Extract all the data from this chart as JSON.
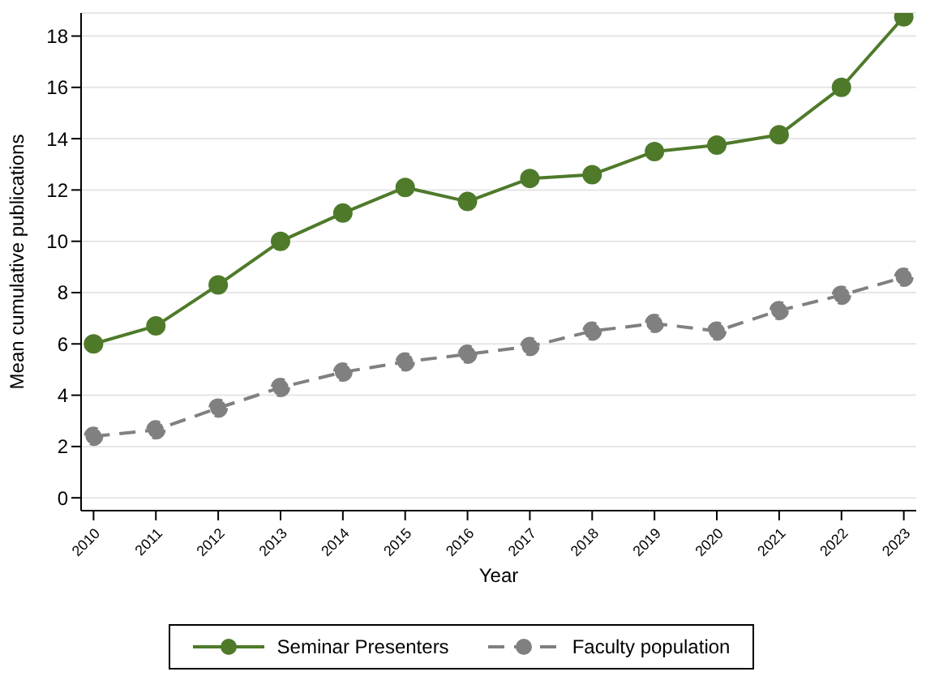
{
  "chart_data": {
    "type": "line",
    "xlabel": "Year",
    "ylabel": "Mean cumulative publications",
    "x": [
      2010,
      2011,
      2012,
      2013,
      2014,
      2015,
      2016,
      2017,
      2018,
      2019,
      2020,
      2021,
      2022,
      2023
    ],
    "xlim": [
      2009.8,
      2023.2
    ],
    "xticks": [
      2010,
      2011,
      2012,
      2013,
      2014,
      2015,
      2016,
      2017,
      2018,
      2019,
      2020,
      2021,
      2022,
      2023
    ],
    "ylim": [
      -0.5,
      18.9
    ],
    "yticks": [
      0,
      2,
      4,
      6,
      8,
      10,
      12,
      14,
      16,
      18
    ],
    "grid": "y",
    "legend": "bottom",
    "marker": "circle",
    "series": [
      {
        "name": "Seminar Presenters",
        "color": "#4e7a2a",
        "line_style": "solid",
        "values": [
          6.0,
          6.7,
          8.3,
          10.0,
          11.1,
          12.1,
          11.55,
          12.45,
          12.6,
          13.5,
          13.75,
          14.15,
          16.0,
          18.75
        ]
      },
      {
        "name": "Faculty population",
        "color": "#808080",
        "line_style": "dashed",
        "values": [
          2.4,
          2.65,
          3.5,
          4.3,
          4.9,
          5.3,
          5.6,
          5.9,
          6.5,
          6.8,
          6.5,
          7.3,
          7.9,
          8.6
        ]
      }
    ]
  }
}
